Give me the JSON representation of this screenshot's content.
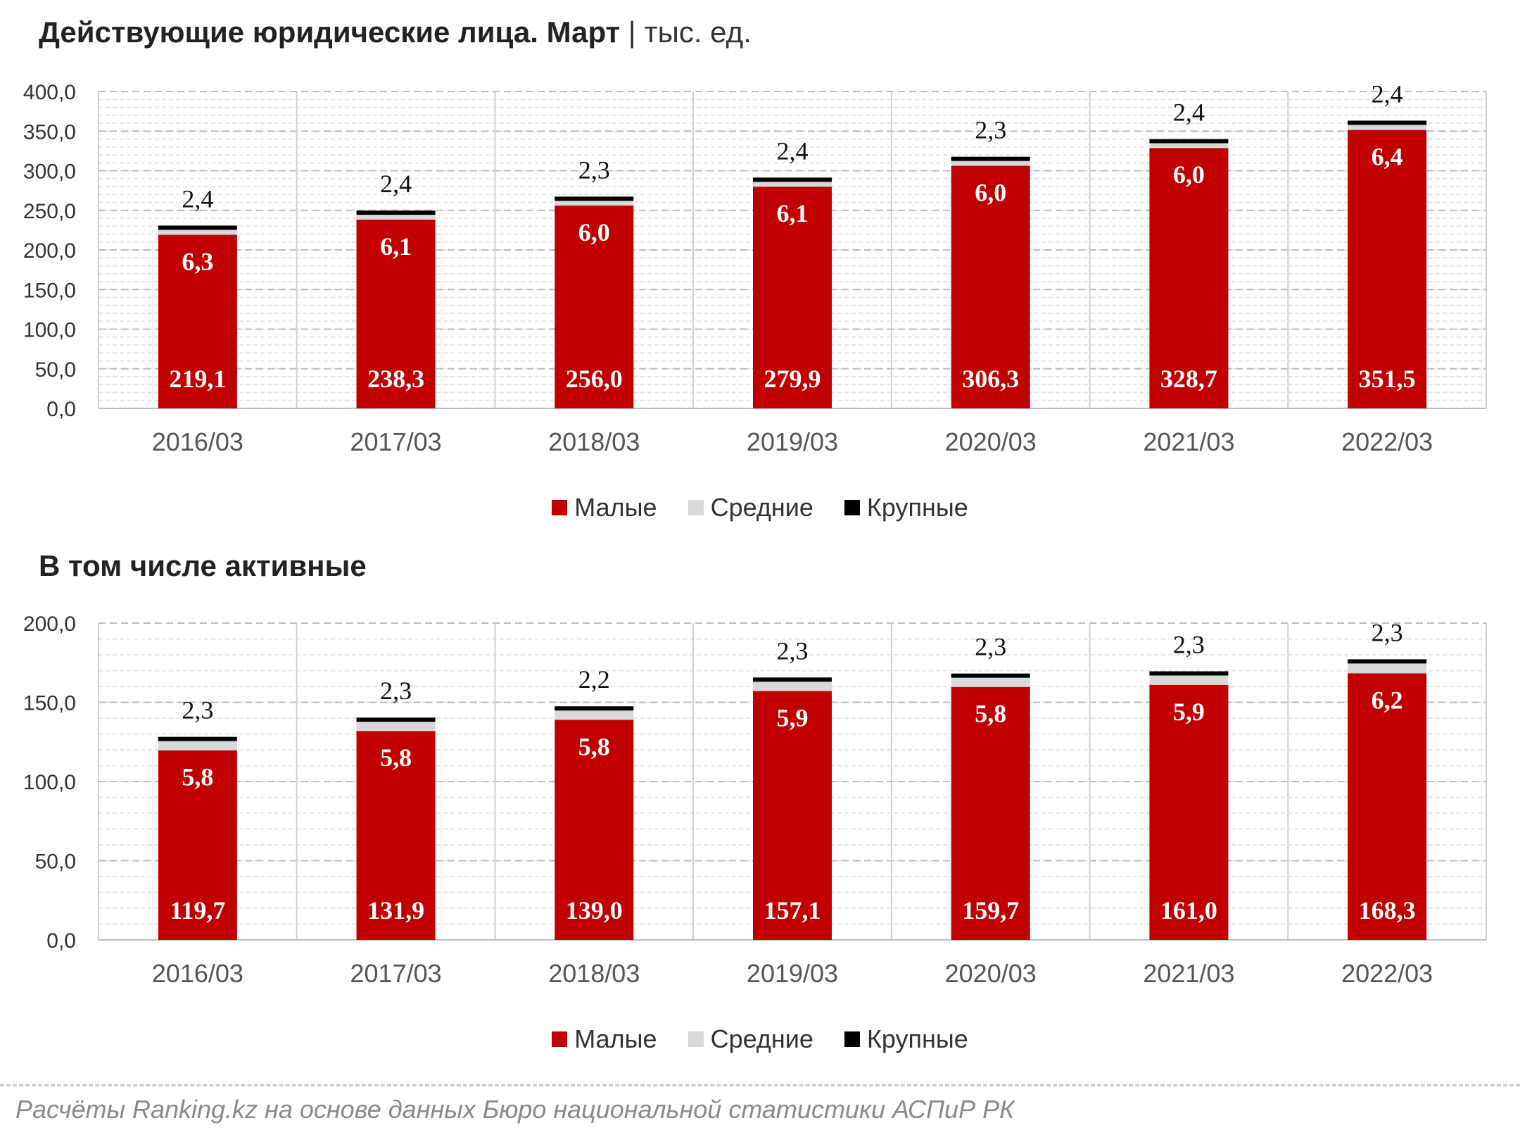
{
  "colors": {
    "small": "#c00000",
    "medium": "#d9d9d9",
    "large": "#000000"
  },
  "legend": {
    "small": "Малые",
    "medium": "Средние",
    "large": "Крупные"
  },
  "source": "Расчёты Ranking.kz на основе данных Бюро национальной статистики АСПиР РК",
  "chart_data": [
    {
      "type": "bar",
      "stacked": true,
      "title": "Действующие юридические лица. Март",
      "title_separator": "|",
      "unit": "тыс. ед.",
      "categories": [
        "2016/03",
        "2017/03",
        "2018/03",
        "2019/03",
        "2020/03",
        "2021/03",
        "2022/03"
      ],
      "ylim": [
        0,
        400
      ],
      "yticks": [
        "0,0",
        "50,0",
        "100,0",
        "150,0",
        "200,0",
        "250,0",
        "300,0",
        "350,0",
        "400,0"
      ],
      "grid": true,
      "legend_position": "bottom",
      "series": [
        {
          "name": "Малые",
          "values": [
            219.1,
            238.3,
            256.0,
            279.9,
            306.3,
            328.7,
            351.5
          ],
          "labels": [
            "219,1",
            "238,3",
            "256,0",
            "279,9",
            "306,3",
            "328,7",
            "351,5"
          ]
        },
        {
          "name": "Средние",
          "values": [
            6.3,
            6.1,
            6.0,
            6.1,
            6.0,
            6.0,
            6.4
          ],
          "labels": [
            "6,3",
            "6,1",
            "6,0",
            "6,1",
            "6,0",
            "6,0",
            "6,4"
          ]
        },
        {
          "name": "Крупные",
          "values": [
            2.4,
            2.4,
            2.3,
            2.4,
            2.3,
            2.4,
            2.4
          ],
          "labels": [
            "2,4",
            "2,4",
            "2,3",
            "2,4",
            "2,3",
            "2,4",
            "2,4"
          ]
        }
      ]
    },
    {
      "type": "bar",
      "stacked": true,
      "title": "В том числе активные",
      "categories": [
        "2016/03",
        "2017/03",
        "2018/03",
        "2019/03",
        "2020/03",
        "2021/03",
        "2022/03"
      ],
      "ylim": [
        0,
        200
      ],
      "yticks": [
        "0,0",
        "50,0",
        "100,0",
        "150,0",
        "200,0"
      ],
      "grid": true,
      "legend_position": "bottom",
      "series": [
        {
          "name": "Малые",
          "values": [
            119.7,
            131.9,
            139.0,
            157.1,
            159.7,
            161.0,
            168.3
          ],
          "labels": [
            "119,7",
            "131,9",
            "139,0",
            "157,1",
            "159,7",
            "161,0",
            "168,3"
          ]
        },
        {
          "name": "Средние",
          "values": [
            5.8,
            5.8,
            5.8,
            5.9,
            5.8,
            5.9,
            6.2
          ],
          "labels": [
            "5,8",
            "5,8",
            "5,8",
            "5,9",
            "5,8",
            "5,9",
            "6,2"
          ]
        },
        {
          "name": "Крупные",
          "values": [
            2.3,
            2.3,
            2.2,
            2.3,
            2.3,
            2.3,
            2.3
          ],
          "labels": [
            "2,3",
            "2,3",
            "2,2",
            "2,3",
            "2,3",
            "2,3",
            "2,3"
          ]
        }
      ]
    }
  ]
}
